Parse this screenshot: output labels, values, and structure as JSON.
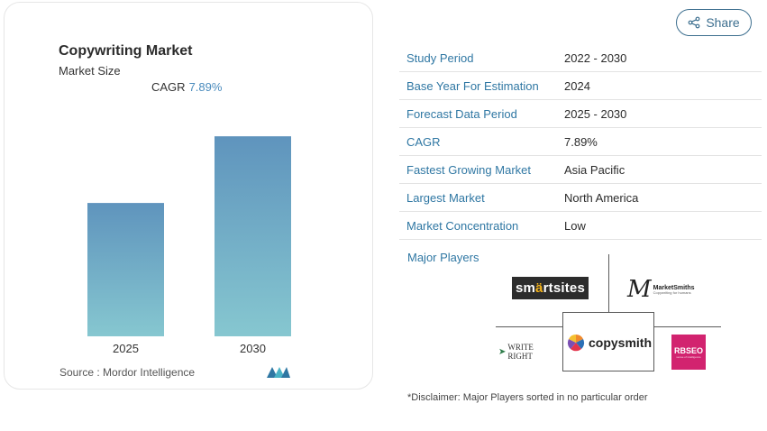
{
  "chart_card": {
    "title": "Copywriting Market",
    "subtitle": "Market Size",
    "cagr_label": "CAGR",
    "cagr_value": "7.89%",
    "source": "Source :  Mordor Intelligence",
    "logo_icon": "mordor-intelligence-logo"
  },
  "chart_data": {
    "type": "bar",
    "categories": [
      "2025",
      "2030"
    ],
    "values": [
      0.58,
      0.87
    ],
    "value_scale": "relative bar height (0-1), no axis values printed",
    "title": "Copywriting Market",
    "subtitle": "Market Size",
    "xlabel": "",
    "ylabel": "",
    "grid": false,
    "legend": "none",
    "bar_color_top": "#5f94bd",
    "bar_color_bottom": "#86c7d0"
  },
  "share": {
    "label": "Share",
    "icon": "share-icon",
    "color": "#3d6f8f"
  },
  "info_table": [
    {
      "key": "Study Period",
      "value": "2022 - 2030"
    },
    {
      "key": "Base Year For Estimation",
      "value": "2024"
    },
    {
      "key": "Forecast Data Period",
      "value": "2025 - 2030"
    },
    {
      "key": "CAGR",
      "value": "7.89%"
    },
    {
      "key": "Fastest Growing Market",
      "value": "Asia Pacific"
    },
    {
      "key": "Largest Market",
      "value": "North America"
    },
    {
      "key": "Market Concentration",
      "value": "Low"
    }
  ],
  "major_players": {
    "label": "Major Players",
    "logos": {
      "smartsites": {
        "pre": "sm",
        "bulb": "ä",
        "post": "rtsites"
      },
      "marketsmiths": {
        "mark": "M",
        "name": "MarketSmiths",
        "tagline": "Copywriting for humans"
      },
      "writeright": {
        "arrow": "➤",
        "name": "WRITE RIGHT"
      },
      "copysmith": {
        "name": "copysmith"
      },
      "rbseo": {
        "name": "RBSEO",
        "tagline": "sense of intelligence"
      }
    }
  },
  "disclaimer": "*Disclaimer: Major Players sorted in no particular order",
  "colors": {
    "accent": "#2f77a3",
    "rbseo_pink": "#d2236f"
  }
}
